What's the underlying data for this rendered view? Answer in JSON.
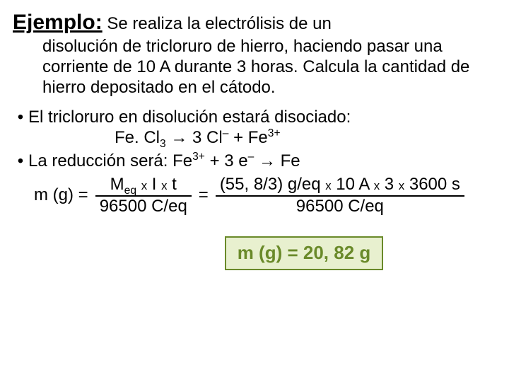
{
  "title": {
    "label": "Ejemplo:",
    "rest_first_line": " Se realiza la electrólisis de un",
    "problem_rest": "disolución de tricloruro de hierro, haciendo pasar una corriente de 10 A durante 3 horas. Calcula la cantidad de hierro depositado en el cátodo."
  },
  "bullet1": {
    "text": "El tricloruro en disolución estará disociado:",
    "formula_pre": "Fe. Cl",
    "formula_sub": "3",
    "formula_arrow": " → 3 Cl",
    "formula_sup1": "–",
    "formula_plus": " + Fe",
    "formula_sup2": "3+"
  },
  "bullet2": {
    "text_pre": "La reducción será: Fe",
    "sup1": "3+",
    "mid": "  + 3 e",
    "sup2": "–",
    "post": " → Fe"
  },
  "mass_eq": {
    "lhs": "m (g) =",
    "num1_a": "M",
    "num1_sub": "eq",
    "num1_b": " ",
    "num1_x1": "x",
    "num1_c": " I ",
    "num1_x2": "x",
    "num1_d": " t",
    "den1": "96500 C/eq",
    "eq": "=",
    "num2_a": "(55, 8/3) g/eq ",
    "num2_x1": "x",
    "num2_b": " 10 A ",
    "num2_x2": "x",
    "num2_c": " 3 ",
    "num2_x3": "x",
    "num2_d": " 3600 s",
    "den2": "96500 C/eq"
  },
  "result": {
    "text": "m (g) =  20, 82 g"
  },
  "style": {
    "bg": "#ffffff",
    "text_color": "#000000",
    "title_fontsize": 30,
    "body_fontsize": 24,
    "result_border": "#6a8a2a",
    "result_bg": "#e8f0cf",
    "result_color": "#6a8a2a",
    "result_fontsize": 26
  }
}
